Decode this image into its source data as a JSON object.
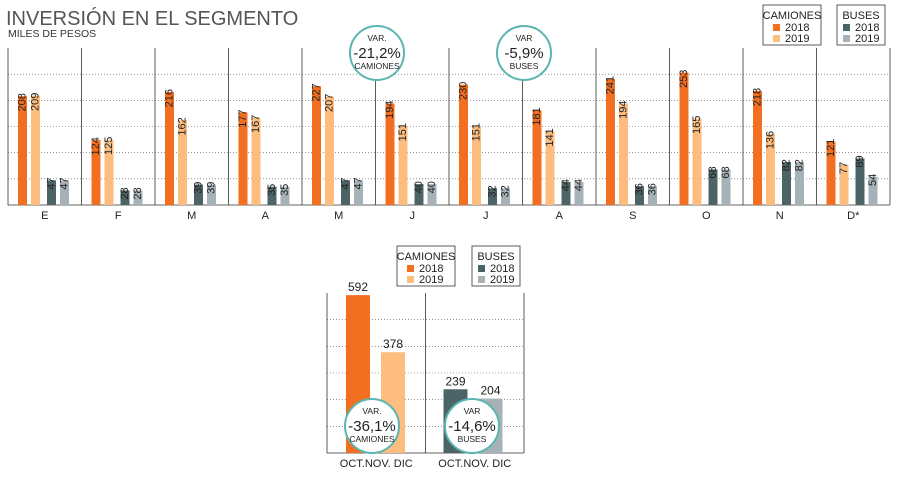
{
  "title": "INVERSIÓN EN EL SEGMENTO",
  "subtitle": "MILES DE PESOS",
  "colors": {
    "camiones_2018": "#f26f21",
    "camiones_2019": "#fdbd7f",
    "buses_2018": "#4d6467",
    "buses_2019": "#a5b2b7",
    "badge_border": "#5bb5b0",
    "grid": "#333333"
  },
  "legend_top": {
    "camiones": {
      "title": "CAMIONES",
      "y2018": "2018",
      "y2019": "2019"
    },
    "buses": {
      "title": "BUSES",
      "y2018": "2018",
      "y2019": "2019"
    }
  },
  "legend_bottom": {
    "camiones": {
      "title": "CAMIONES",
      "y2018": "2018",
      "y2019": "2019"
    },
    "buses": {
      "title": "BUSES",
      "y2018": "2018",
      "y2019": "2019"
    }
  },
  "badges": [
    {
      "small": "VAR.",
      "big": "-21,2%",
      "label": "CAMIONES"
    },
    {
      "small": "VAR",
      "big": "-5,9%",
      "label": "BUSES"
    },
    {
      "small": "VAR.",
      "big": "-36,1%",
      "label": "CAMIONES"
    },
    {
      "small": "VAR",
      "big": "-14,6%",
      "label": "BUSES"
    }
  ],
  "chart_data": [
    {
      "type": "bar",
      "title": "INVERSIÓN EN EL SEGMENTO",
      "ylabel": "MILES DE PESOS",
      "ylim": [
        0,
        300
      ],
      "grid": true,
      "categories": [
        "E",
        "F",
        "M",
        "A",
        "M",
        "J",
        "J",
        "A",
        "S",
        "O",
        "N",
        "D*"
      ],
      "series": [
        {
          "name": "CAMIONES 2018",
          "values": [
            208,
            124,
            216,
            177,
            227,
            194,
            230,
            181,
            241,
            253,
            218,
            121
          ]
        },
        {
          "name": "CAMIONES 2019",
          "values": [
            209,
            125,
            162,
            167,
            207,
            151,
            151,
            141,
            194,
            165,
            136,
            77
          ]
        },
        {
          "name": "BUSES 2018",
          "values": [
            47,
            28,
            39,
            35,
            47,
            40,
            32,
            44,
            36,
            68,
            82,
            89
          ]
        },
        {
          "name": "BUSES 2019",
          "values": [
            47,
            28,
            39,
            35,
            47,
            40,
            32,
            44,
            36,
            68,
            82,
            54
          ]
        }
      ]
    },
    {
      "type": "bar",
      "ylim": [
        0,
        600
      ],
      "grid": true,
      "groups": [
        {
          "category": "OCT.NOV. DIC",
          "series": [
            {
              "name": "CAMIONES 2018",
              "value": 592
            },
            {
              "name": "CAMIONES 2019",
              "value": 378
            }
          ]
        },
        {
          "category": "OCT.NOV. DIC",
          "series": [
            {
              "name": "BUSES 2018",
              "value": 239
            },
            {
              "name": "BUSES 2019",
              "value": 204
            }
          ]
        }
      ]
    }
  ]
}
